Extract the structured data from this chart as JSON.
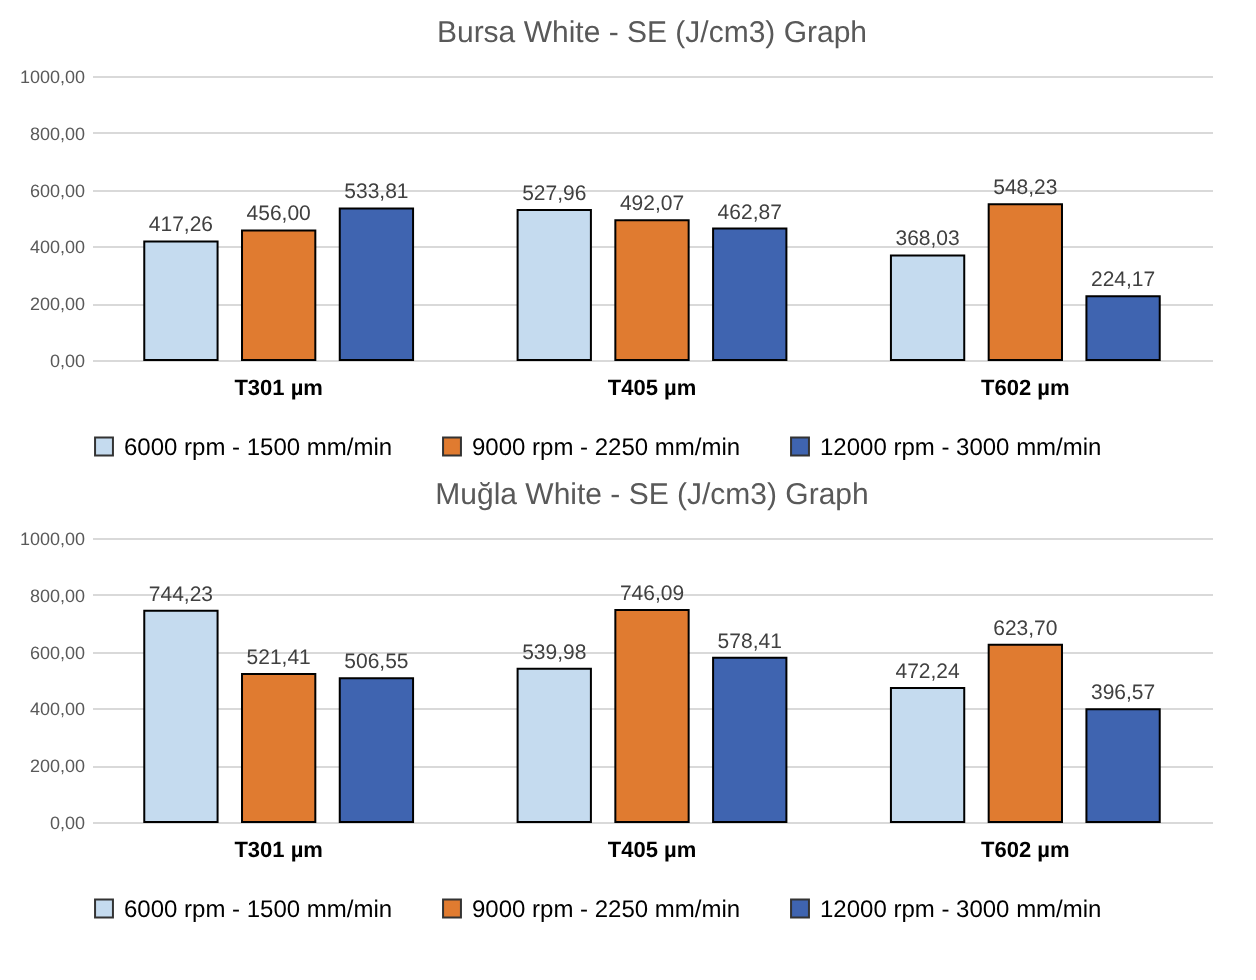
{
  "chart_data": [
    {
      "type": "bar",
      "title": "Bursa White - SE (J/cm3) Graph",
      "categories": [
        "T301 µm",
        "T405 µm",
        "T602 µm"
      ],
      "series": [
        {
          "name": "6000 rpm - 1500 mm/min",
          "color": "#c5dbef",
          "values": [
            417.26,
            527.96,
            368.03
          ],
          "value_labels": [
            "417,26",
            "527,96",
            "368,03"
          ]
        },
        {
          "name": "9000 rpm - 2250 mm/min",
          "color": "#e07b30",
          "values": [
            456.0,
            492.07,
            548.23
          ],
          "value_labels": [
            "456,00",
            "492,07",
            "548,23"
          ]
        },
        {
          "name": "12000 rpm - 3000 mm/min",
          "color": "#3f64b0",
          "values": [
            533.81,
            462.87,
            224.17
          ],
          "value_labels": [
            "533,81",
            "462,87",
            "224,17"
          ]
        }
      ],
      "ylim": [
        0,
        1000
      ],
      "yticks": [
        {
          "value": 0,
          "label": "0,00"
        },
        {
          "value": 200,
          "label": "200,00"
        },
        {
          "value": 400,
          "label": "400,00"
        },
        {
          "value": 600,
          "label": "600,00"
        },
        {
          "value": 800,
          "label": "800,00"
        },
        {
          "value": 1000,
          "label": "1000,00"
        }
      ],
      "grid": "y",
      "legend": "bottom"
    },
    {
      "type": "bar",
      "title": "Muğla White - SE (J/cm3) Graph",
      "categories": [
        "T301 µm",
        "T405 µm",
        "T602 µm"
      ],
      "series": [
        {
          "name": "6000 rpm - 1500 mm/min",
          "color": "#c5dbef",
          "values": [
            744.23,
            539.98,
            472.24
          ],
          "value_labels": [
            "744,23",
            "539,98",
            "472,24"
          ]
        },
        {
          "name": "9000 rpm - 2250 mm/min",
          "color": "#e07b30",
          "values": [
            521.41,
            746.09,
            623.7
          ],
          "value_labels": [
            "521,41",
            "746,09",
            "623,70"
          ]
        },
        {
          "name": "12000 rpm - 3000 mm/min",
          "color": "#3f64b0",
          "values": [
            506.55,
            578.41,
            396.57
          ],
          "value_labels": [
            "506,55",
            "578,41",
            "396,57"
          ]
        }
      ],
      "ylim": [
        0,
        1000
      ],
      "yticks": [
        {
          "value": 0,
          "label": "0,00"
        },
        {
          "value": 200,
          "label": "200,00"
        },
        {
          "value": 400,
          "label": "400,00"
        },
        {
          "value": 600,
          "label": "600,00"
        },
        {
          "value": 800,
          "label": "800,00"
        },
        {
          "value": 1000,
          "label": "1000,00"
        }
      ],
      "grid": "y",
      "legend": "bottom"
    }
  ]
}
